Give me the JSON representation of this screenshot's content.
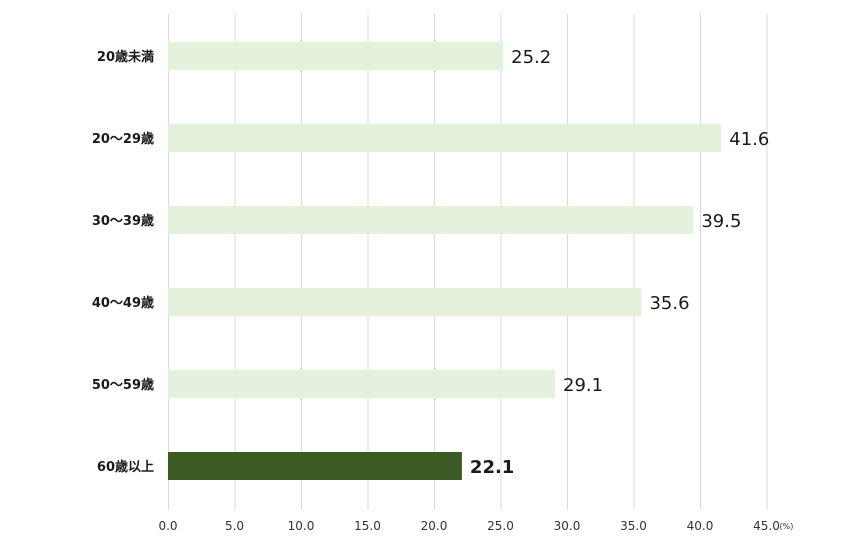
{
  "chart_data": {
    "type": "bar",
    "orientation": "horizontal",
    "categories": [
      "20歳未満",
      "20〜29歳",
      "30〜39歳",
      "40〜49歳",
      "50〜59歳",
      "60歳以上"
    ],
    "values": [
      25.2,
      41.6,
      39.5,
      35.6,
      29.1,
      22.1
    ],
    "value_labels": [
      "25.2",
      "41.6",
      "39.5",
      "35.6",
      "29.1",
      "22.1"
    ],
    "highlight_index": 5,
    "xlim": [
      0,
      45
    ],
    "x_ticks": [
      0,
      5,
      10,
      15,
      20,
      25,
      30,
      35,
      40,
      45
    ],
    "x_tick_labels": [
      "0.0",
      "5.0",
      "10.0",
      "15.0",
      "20.0",
      "25.0",
      "30.0",
      "35.0",
      "40.0",
      "45.0"
    ],
    "x_unit": "(%)",
    "grid": "vertical",
    "colors": {
      "bar": "#e4f1dd",
      "highlight": "#3b5a24",
      "grid": "#d9d9d9"
    }
  }
}
